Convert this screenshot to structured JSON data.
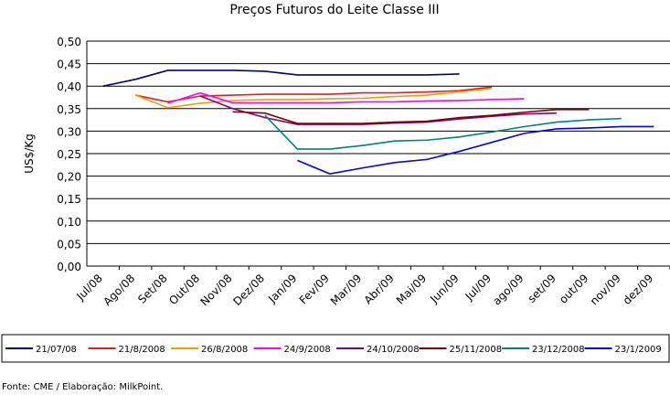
{
  "chart_data": {
    "type": "line",
    "title": "Preços Futuros do Leite Classe III",
    "ylabel": "US$/Kg",
    "footnote": "Fonte: CME / Elaboração: MilkPoint.",
    "categories": [
      "Jul/08",
      "Ago/08",
      "Set/08",
      "Out/08",
      "Nov/08",
      "Dez/08",
      "Jan/09",
      "Fev/09",
      "Mar/09",
      "Abr/09",
      "Mai/09",
      "Jun/09",
      "Jul/09",
      "ago/09",
      "set/09",
      "out/09",
      "nov/09",
      "dez/09"
    ],
    "ylim": [
      0,
      0.5
    ],
    "yticks": [
      {
        "value": 0,
        "label": "0,00"
      },
      {
        "value": 0.05,
        "label": "0,05"
      },
      {
        "value": 0.1,
        "label": "0,10"
      },
      {
        "value": 0.15,
        "label": "0,15"
      },
      {
        "value": 0.2,
        "label": "0,20"
      },
      {
        "value": 0.25,
        "label": "0,25"
      },
      {
        "value": 0.3,
        "label": "0,30"
      },
      {
        "value": 0.35,
        "label": "0,35"
      },
      {
        "value": 0.4,
        "label": "0,40"
      },
      {
        "value": 0.45,
        "label": "0,45"
      },
      {
        "value": 0.5,
        "label": "0,50"
      }
    ],
    "grid": true,
    "legend": "bottom",
    "series": [
      {
        "name": "21/07/08",
        "color": "#000080",
        "values": [
          0.4,
          0.415,
          0.435,
          0.435,
          0.435,
          0.433,
          0.425,
          0.425,
          0.425,
          0.425,
          0.425,
          0.427,
          null,
          null,
          null,
          null,
          null,
          null
        ]
      },
      {
        "name": "21/8/2008",
        "color": "#e02020",
        "values": [
          null,
          0.38,
          0.365,
          0.378,
          0.38,
          0.382,
          0.382,
          0.382,
          0.385,
          0.385,
          0.387,
          0.39,
          0.398,
          null,
          null,
          null,
          null,
          null
        ]
      },
      {
        "name": "26/8/2008",
        "color": "#ff9900",
        "values": [
          null,
          0.38,
          0.352,
          0.362,
          0.368,
          0.37,
          0.37,
          0.372,
          0.373,
          0.377,
          0.38,
          0.387,
          0.395,
          null,
          null,
          null,
          null,
          null
        ]
      },
      {
        "name": "24/9/2008",
        "color": "#ff00ff",
        "values": [
          null,
          null,
          0.362,
          0.385,
          0.363,
          0.363,
          0.363,
          0.363,
          0.365,
          0.365,
          0.367,
          0.368,
          0.37,
          0.372,
          null,
          null,
          null,
          null
        ]
      },
      {
        "name": "24/10/2008",
        "color": "#800080",
        "values": [
          null,
          null,
          null,
          0.378,
          0.35,
          0.33,
          0.315,
          0.315,
          0.315,
          0.318,
          0.32,
          0.327,
          0.333,
          0.338,
          0.34,
          null,
          null,
          null
        ]
      },
      {
        "name": "25/11/2008",
        "color": "#800000",
        "values": [
          null,
          null,
          null,
          null,
          0.343,
          0.34,
          0.317,
          0.317,
          0.317,
          0.32,
          0.322,
          0.33,
          0.335,
          0.342,
          0.348,
          0.348,
          null,
          null
        ]
      },
      {
        "name": "23/12/2008",
        "color": "#008080",
        "values": [
          null,
          null,
          null,
          null,
          null,
          0.335,
          0.26,
          0.26,
          0.268,
          0.278,
          0.28,
          0.287,
          0.298,
          0.31,
          0.32,
          0.325,
          0.328,
          null
        ]
      },
      {
        "name": "23/1/2009",
        "color": "#0000ff",
        "values": [
          null,
          null,
          null,
          null,
          null,
          null,
          0.235,
          0.205,
          0.218,
          0.23,
          0.237,
          0.255,
          0.275,
          0.295,
          0.305,
          0.307,
          0.31,
          0.31
        ]
      }
    ]
  }
}
